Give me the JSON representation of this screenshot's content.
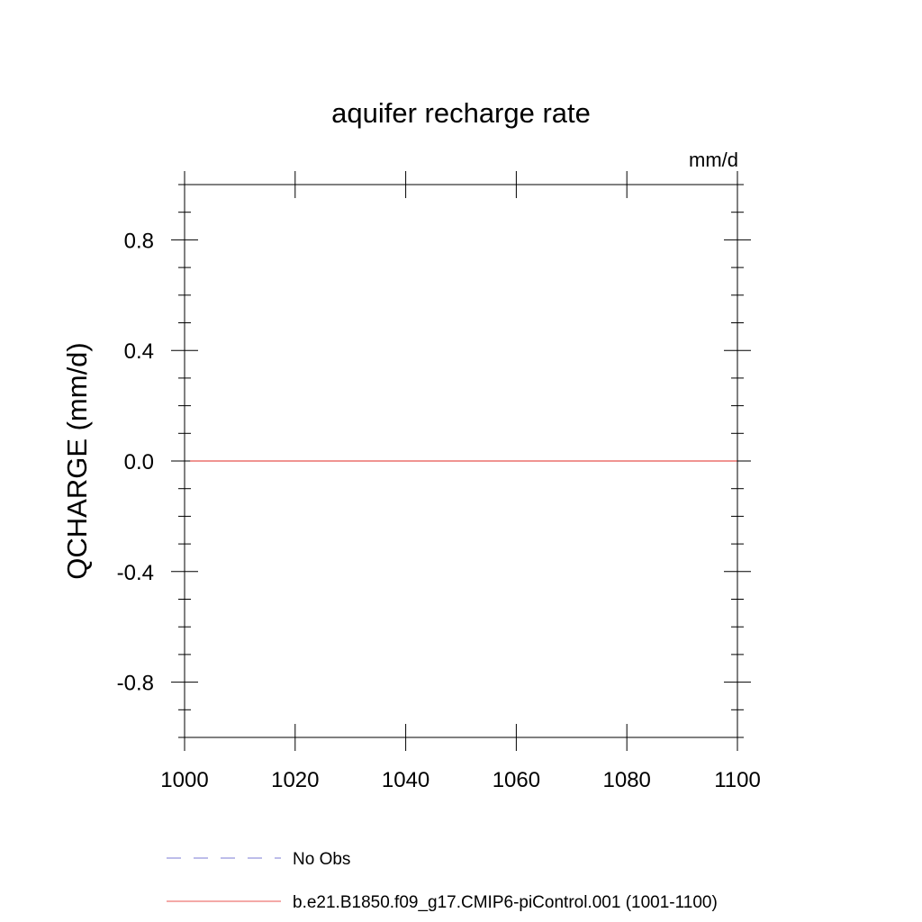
{
  "chart_data": {
    "type": "line",
    "title": "aquifer recharge rate",
    "units_label": "mm/d",
    "ylabel": "QCHARGE  (mm/d)",
    "xlabel": "",
    "xlim": [
      1000,
      1100
    ],
    "ylim": [
      -1.0,
      1.0
    ],
    "x_ticks": [
      1000,
      1020,
      1040,
      1060,
      1080,
      1100
    ],
    "x_tick_labels": [
      "1000",
      "1020",
      "1040",
      "1060",
      "1080",
      "1100"
    ],
    "x_minor_step": 20,
    "y_ticks": [
      -0.8,
      -0.4,
      0.0,
      0.4,
      0.8
    ],
    "y_tick_labels": [
      "-0.8",
      "-0.4",
      "0.0",
      "0.4",
      "0.8"
    ],
    "y_minor_step": 0.1,
    "grid": false,
    "legend_position": "bottom-left",
    "series": [
      {
        "name": "No Obs",
        "color": "#7b7bd6",
        "dash": "dashed",
        "x": [],
        "y": []
      },
      {
        "name": "b.e21.B1850.f09_g17.CMIP6-piControl.001 (1001-1100)",
        "color": "#e8534f",
        "dash": "solid",
        "x": [
          1001,
          1010,
          1020,
          1030,
          1040,
          1050,
          1060,
          1070,
          1080,
          1090,
          1100
        ],
        "y": [
          0,
          0,
          0,
          0,
          0,
          0,
          0,
          0,
          0,
          0,
          0
        ]
      }
    ]
  }
}
